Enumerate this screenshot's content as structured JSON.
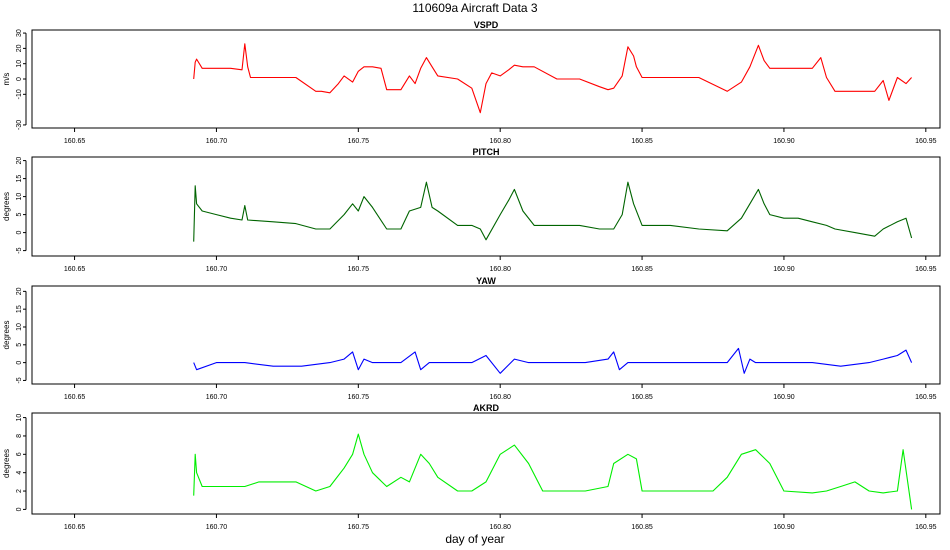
{
  "title": "110609a   Aircraft Data 3",
  "xlabel": "day of year",
  "chart_data": [
    {
      "type": "line",
      "title": "VSPD",
      "ylabel": "m/s",
      "color": "#ff0000",
      "xlim": [
        160.635,
        160.955
      ],
      "ylim": [
        -32,
        32
      ],
      "yticks": [
        -30,
        -10,
        0,
        10,
        20,
        30
      ],
      "xticks": [
        160.65,
        160.7,
        160.75,
        160.8,
        160.85,
        160.9,
        160.95
      ],
      "series": [
        {
          "name": "VSPD",
          "x": [
            160.692,
            160.6925,
            160.693,
            160.695,
            160.697,
            160.705,
            160.709,
            160.71,
            160.711,
            160.712,
            160.72,
            160.728,
            160.735,
            160.737,
            160.74,
            160.743,
            160.745,
            160.748,
            160.75,
            160.752,
            160.755,
            160.758,
            160.76,
            160.765,
            160.768,
            160.77,
            160.772,
            160.774,
            160.776,
            160.778,
            160.785,
            160.79,
            160.793,
            160.795,
            160.797,
            160.8,
            160.803,
            160.805,
            160.808,
            160.812,
            160.82,
            160.828,
            160.835,
            160.838,
            160.84,
            160.843,
            160.845,
            160.847,
            160.848,
            160.85,
            160.86,
            160.87,
            160.88,
            160.885,
            160.888,
            160.891,
            160.893,
            160.895,
            160.9,
            160.905,
            160.91,
            160.913,
            160.915,
            160.918,
            160.925,
            160.932,
            160.935,
            160.937,
            160.94,
            160.943,
            160.945
          ],
          "y": [
            0,
            11,
            13,
            7,
            7,
            7,
            6,
            23,
            8,
            1,
            1,
            1,
            -8,
            -8,
            -9,
            -3,
            2,
            -2,
            5,
            8,
            8,
            7,
            -7,
            -7,
            2,
            -3,
            7,
            14,
            8,
            2,
            0,
            -6,
            -22,
            -3,
            4,
            2,
            6,
            9,
            8,
            8,
            0,
            0,
            -5,
            -7,
            -6,
            2,
            21,
            15,
            8,
            1,
            1,
            1,
            -8,
            -2,
            8,
            22,
            12,
            7,
            7,
            7,
            7,
            14,
            1,
            -8,
            -8,
            -8,
            -1,
            -14,
            1,
            -3,
            1
          ]
        }
      ]
    },
    {
      "type": "line",
      "title": "PITCH",
      "ylabel": "degrees",
      "color": "#006400",
      "xlim": [
        160.635,
        160.955
      ],
      "ylim": [
        -6.5,
        21
      ],
      "yticks": [
        -5,
        0,
        5,
        10,
        15,
        20
      ],
      "xticks": [
        160.65,
        160.7,
        160.75,
        160.8,
        160.85,
        160.9,
        160.95
      ],
      "series": [
        {
          "name": "PITCH",
          "x": [
            160.692,
            160.6925,
            160.693,
            160.695,
            160.7,
            160.705,
            160.709,
            160.71,
            160.711,
            160.72,
            160.728,
            160.735,
            160.74,
            160.745,
            160.748,
            160.75,
            160.752,
            160.755,
            160.76,
            160.765,
            160.768,
            160.772,
            160.774,
            160.776,
            160.778,
            160.785,
            160.79,
            160.793,
            160.795,
            160.8,
            160.803,
            160.805,
            160.808,
            160.812,
            160.82,
            160.828,
            160.835,
            160.84,
            160.843,
            160.845,
            160.847,
            160.85,
            160.86,
            160.87,
            160.88,
            160.885,
            160.888,
            160.891,
            160.893,
            160.895,
            160.9,
            160.905,
            160.91,
            160.915,
            160.918,
            160.925,
            160.932,
            160.935,
            160.94,
            160.943,
            160.945
          ],
          "y": [
            -2.5,
            13,
            8,
            6,
            5,
            4,
            3.5,
            7.5,
            3.5,
            3,
            2.5,
            1,
            1,
            5,
            8,
            6,
            10,
            7,
            1,
            1,
            6,
            7,
            14,
            7,
            6,
            2,
            2,
            1,
            -2,
            5,
            9,
            12,
            6,
            2,
            2,
            2,
            1,
            1,
            5,
            14,
            8,
            2,
            2,
            1,
            0.5,
            4,
            8,
            12,
            8,
            5,
            4,
            4,
            3,
            2,
            1,
            0,
            -1,
            1,
            3,
            4,
            -1.5
          ]
        }
      ]
    },
    {
      "type": "line",
      "title": "YAW",
      "ylabel": "degrees",
      "color": "#0000ff",
      "xlim": [
        160.635,
        160.955
      ],
      "ylim": [
        -6,
        21.5
      ],
      "yticks": [
        -5,
        0,
        5,
        10,
        15,
        20
      ],
      "xticks": [
        160.65,
        160.7,
        160.75,
        160.8,
        160.85,
        160.9,
        160.95
      ],
      "series": [
        {
          "name": "YAW",
          "x": [
            160.692,
            160.693,
            160.7,
            160.71,
            160.72,
            160.73,
            160.74,
            160.745,
            160.748,
            160.75,
            160.752,
            160.755,
            160.76,
            160.765,
            160.77,
            160.772,
            160.775,
            160.78,
            160.79,
            160.795,
            160.8,
            160.805,
            160.81,
            160.82,
            160.83,
            160.838,
            160.84,
            160.842,
            160.845,
            160.85,
            160.86,
            160.87,
            160.88,
            160.884,
            160.886,
            160.888,
            160.89,
            160.9,
            160.91,
            160.92,
            160.93,
            160.935,
            160.94,
            160.943,
            160.945
          ],
          "y": [
            0,
            -2,
            0,
            0,
            -1,
            -1,
            0,
            1,
            3,
            -2,
            1,
            0,
            0,
            0,
            3,
            -2,
            0,
            0,
            0,
            2,
            -3,
            1,
            0,
            0,
            0,
            1,
            3,
            -2,
            0,
            0,
            0,
            0,
            0,
            4,
            -3,
            1,
            0,
            0,
            0,
            -1,
            0,
            1,
            2,
            3.5,
            0
          ]
        }
      ]
    },
    {
      "type": "line",
      "title": "AKRD",
      "ylabel": "degrees",
      "color": "#00ee00",
      "xlim": [
        160.635,
        160.955
      ],
      "ylim": [
        -0.5,
        10.5
      ],
      "yticks": [
        0,
        2,
        4,
        6,
        8,
        10
      ],
      "xticks": [
        160.65,
        160.7,
        160.75,
        160.8,
        160.85,
        160.9,
        160.95
      ],
      "series": [
        {
          "name": "AKRD",
          "x": [
            160.692,
            160.6925,
            160.693,
            160.695,
            160.7,
            160.705,
            160.71,
            160.715,
            160.72,
            160.728,
            160.735,
            160.74,
            160.745,
            160.748,
            160.75,
            160.752,
            160.755,
            160.76,
            160.765,
            160.768,
            160.772,
            160.775,
            160.778,
            160.785,
            160.79,
            160.795,
            160.8,
            160.805,
            160.81,
            160.815,
            160.82,
            160.83,
            160.838,
            160.84,
            160.845,
            160.848,
            160.85,
            160.86,
            160.87,
            160.875,
            160.88,
            160.885,
            160.89,
            160.895,
            160.9,
            160.91,
            160.915,
            160.92,
            160.925,
            160.93,
            160.935,
            160.94,
            160.942,
            160.945
          ],
          "y": [
            1.5,
            6,
            4,
            2.5,
            2.5,
            2.5,
            2.5,
            3,
            3,
            3,
            2,
            2.5,
            4.5,
            6,
            8.2,
            6,
            4,
            2.5,
            3.5,
            3,
            6,
            5,
            3.5,
            2,
            2,
            3,
            6,
            7,
            5,
            2,
            2,
            2,
            2.5,
            5,
            6,
            5.5,
            2,
            2,
            2,
            2,
            3.5,
            6,
            6.5,
            5,
            2,
            1.8,
            2,
            2.5,
            3,
            2,
            1.8,
            2,
            6.5,
            0
          ]
        }
      ]
    }
  ]
}
